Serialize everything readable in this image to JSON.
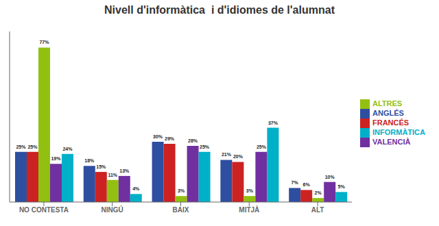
{
  "chart_data": {
    "type": "bar",
    "title": "Nivell d'informàtica  i d'idiomes de l'alumnat",
    "categories": [
      "NO CONTESTA",
      "NINGÚ",
      "BAIX",
      "MITJÀ",
      "ALT"
    ],
    "series": [
      {
        "name": "ANGLÉS",
        "color": "#2E4E9F",
        "values": [
          25,
          18,
          30,
          21,
          7
        ],
        "value_labels": [
          "25%",
          "18%",
          "30%",
          "21%",
          "7%"
        ]
      },
      {
        "name": "FRANCÉS",
        "color": "#CC2222",
        "values": [
          25,
          15,
          29,
          20,
          6
        ],
        "value_labels": [
          "25%",
          "15%",
          "29%",
          "20%",
          "6%"
        ]
      },
      {
        "name": "ALTRES",
        "color": "#92C010",
        "values": [
          77,
          11,
          3,
          3,
          2
        ],
        "value_labels": [
          "77%",
          "11%",
          "3%",
          "3%",
          "2%"
        ]
      },
      {
        "name": "VALENCIÀ",
        "color": "#7030A0",
        "values": [
          19,
          13,
          28,
          25,
          10
        ],
        "value_labels": [
          "19%",
          "13%",
          "28%",
          "25%",
          "10%"
        ]
      },
      {
        "name": "INFORMÀTICA",
        "color": "#00B0C8",
        "values": [
          24,
          4,
          25,
          37,
          5
        ],
        "value_labels": [
          "24%",
          "4%",
          "25%",
          "37%",
          "5%"
        ]
      }
    ],
    "ylim": [
      0,
      85
    ],
    "grid": false,
    "legend": "right",
    "data_labels": true,
    "tick_labels": "x"
  }
}
